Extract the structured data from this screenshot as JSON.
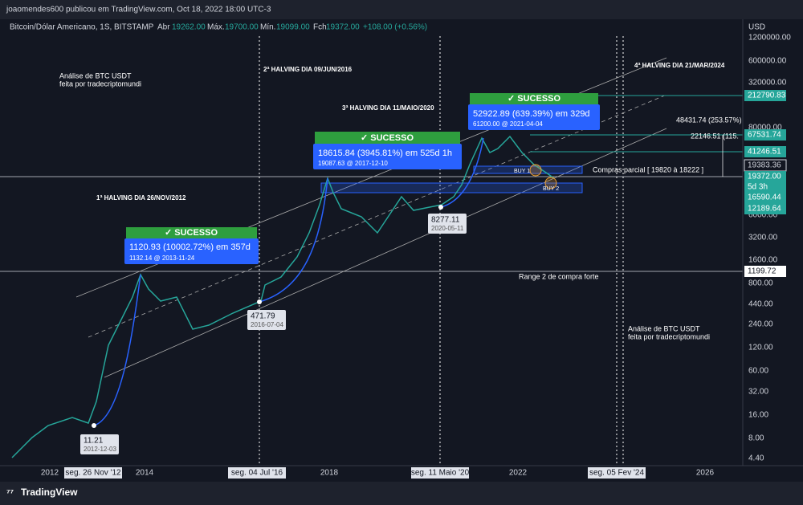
{
  "header": {
    "title": "joaomendes600 publicou em TradingView.com, Oct 18, 2022 18:00 UTC-3"
  },
  "symbol_bar": {
    "symbol": "Bitcoin/Dólar Americano, 1S, BITSTAMP",
    "open_label": "Abr",
    "open": "19262.00",
    "high_label": "Máx.",
    "high": "19700.00",
    "low_label": "Mín.",
    "low": "19099.00",
    "close_label": "Fch",
    "close": "19372.00",
    "change": "+108.00 (+0.56%)"
  },
  "price_axis": {
    "currency": "USD",
    "labels": [
      "1200000.00",
      "600000.00",
      "320000.00",
      "80000.00",
      "6000.00",
      "3200.00",
      "1600.00",
      "800.00",
      "440.00",
      "240.00",
      "120.00",
      "60.00",
      "32.00",
      "16.00",
      "8.00",
      "4.40"
    ],
    "markers": [
      "212790.83",
      "67531.74",
      "41246.51",
      "19383.36",
      "19372.00",
      "5d 3h",
      "16590.44",
      "12189.64",
      "1199.72"
    ]
  },
  "time_axis": {
    "labels": [
      "2012",
      "seg. 26 Nov '12",
      "2014",
      "seg. 04 Jul '16",
      "2018",
      "seg. 11 Maio '20",
      "2022",
      "seg. 05 Fev '24",
      "2026"
    ]
  },
  "annotations": {
    "analysis_top": [
      "Análise de BTC USDT",
      "feita por tradecriptomundi"
    ],
    "analysis_bottom": [
      "Análise de BTC USDT",
      "feita por tradecriptomundi"
    ],
    "halvings": [
      "1ª HALVING DIA 26/NOV/2012",
      "2ª HALVING DIA 09/JUN/2016",
      "3ª HALVING DIA 11/MAIO/2020",
      "4ª HALVING DIA 21/MAR/2024"
    ],
    "success": [
      {
        "label": "✓ SUCESSO",
        "measure": "1120.93 (10002.72%) em 357d",
        "detail": "1132.14 @ 2013-11-24"
      },
      {
        "label": "✓ SUCESSO",
        "measure": "18615.84 (3945.81%) em 525d 1h",
        "detail": "19087.63 @ 2017-12-10"
      },
      {
        "label": "✓ SUCESSO",
        "measure": "52922.89 (639.39%) em 329d",
        "detail": "61200.00 @ 2021-04-04"
      }
    ],
    "lows": [
      {
        "price": "11.21",
        "date": "2012-12-03"
      },
      {
        "price": "471.79",
        "date": "2016-07-04"
      },
      {
        "price": "8277.11",
        "date": "2020-05-11"
      }
    ],
    "buy1": "BUY 1",
    "buy2": "BUY 2",
    "partial": "Compras parcial [ 19820 à 18222 ]",
    "range2": "Range 2 de compra forte",
    "target1": "48431.74 (253.57%)",
    "target2": "22146.51 (115."
  },
  "footer": {
    "brand": "TradingView"
  }
}
